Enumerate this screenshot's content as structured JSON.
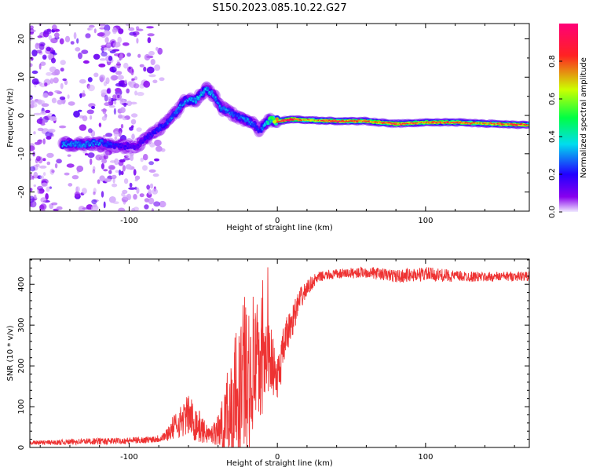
{
  "title": "S150.2023.085.10.22.G27",
  "chart_data": [
    {
      "type": "heatmap",
      "name": "spectrogram",
      "xlabel": "Height of straight line (km)",
      "ylabel": "Frequency (Hz)",
      "xlim": [
        -167,
        170
      ],
      "ylim": [
        -25,
        24
      ],
      "x_ticks": [
        -100,
        0,
        100
      ],
      "x_tick_labels": [
        "-100",
        "0",
        "100"
      ],
      "y_ticks": [
        -20,
        -10,
        0,
        10,
        20
      ],
      "y_tick_labels": [
        "-20",
        "-10",
        "0",
        "10",
        "20"
      ],
      "ridge": {
        "x": [
          -140,
          -130,
          -120,
          -110,
          -95,
          -85,
          -75,
          -68,
          -62,
          -55,
          -48,
          -42,
          -38,
          -33,
          -28,
          -22,
          -17,
          -12,
          -5,
          0,
          10,
          20,
          40,
          60,
          80,
          100,
          120,
          140,
          160,
          170
        ],
        "y": [
          -7.5,
          -7.5,
          -7,
          -8,
          -8,
          -5,
          -2,
          1,
          4,
          4,
          7,
          5,
          2,
          1,
          0,
          -1,
          -2,
          -4,
          -1,
          -1.5,
          -1,
          -1.2,
          -1.5,
          -1.5,
          -2.2,
          -1.8,
          -1.8,
          -2.1,
          -2.4,
          -2.5
        ],
        "amplitude": [
          0.3,
          0.3,
          0.3,
          0.2,
          0.15,
          0.2,
          0.25,
          0.3,
          0.3,
          0.35,
          0.35,
          0.3,
          0.3,
          0.3,
          0.25,
          0.3,
          0.3,
          0.2,
          0.5,
          0.8,
          0.95,
          0.7,
          0.85,
          0.8,
          0.85,
          0.8,
          0.85,
          0.75,
          0.85,
          0.8
        ]
      },
      "colorbar": {
        "label": "Normalized spectral amplitude",
        "range": [
          0,
          1
        ],
        "ticks": [
          0.0,
          0.2,
          0.4,
          0.6,
          0.8
        ],
        "tick_labels": [
          "0.0",
          "0.2",
          "0.4",
          "0.6",
          "0.8"
        ],
        "colors": [
          "#f0eaff",
          "#8800ee",
          "#2200ff",
          "#00ddee",
          "#00ff44",
          "#ccff00",
          "#ff2222",
          "#ff0077"
        ]
      }
    },
    {
      "type": "line",
      "name": "snr",
      "xlabel": "Height of straight line (km)",
      "ylabel": "SNR (10 * v/v)",
      "xlim": [
        -167,
        170
      ],
      "ylim": [
        0,
        462
      ],
      "x_ticks": [
        -100,
        0,
        100
      ],
      "x_tick_labels": [
        "-100",
        "0",
        "100"
      ],
      "y_ticks": [
        0,
        100,
        200,
        300,
        400
      ],
      "y_tick_labels": [
        "0",
        "100",
        "200",
        "300",
        "400"
      ],
      "color": "#ee3333",
      "series": [
        {
          "name": "SNR",
          "x": [
            -167,
            -150,
            -130,
            -115,
            -100,
            -90,
            -80,
            -75,
            -70,
            -65,
            -60,
            -55,
            -50,
            -45,
            -40,
            -35,
            -30,
            -25,
            -20,
            -15,
            -10,
            -5,
            0,
            5,
            10,
            15,
            20,
            25,
            30,
            40,
            60,
            80,
            100,
            120,
            140,
            160,
            170
          ],
          "y": [
            12,
            12,
            15,
            15,
            17,
            18,
            22,
            30,
            50,
            65,
            80,
            60,
            40,
            30,
            45,
            60,
            100,
            160,
            180,
            190,
            200,
            230,
            160,
            260,
            310,
            360,
            390,
            410,
            420,
            425,
            430,
            420,
            425,
            420,
            418,
            420,
            420
          ],
          "noise": [
            5,
            6,
            8,
            8,
            8,
            8,
            10,
            15,
            30,
            40,
            50,
            50,
            30,
            20,
            40,
            80,
            150,
            200,
            200,
            180,
            120,
            80,
            60,
            50,
            40,
            30,
            20,
            15,
            12,
            12,
            14,
            16,
            18,
            14,
            12,
            12,
            12
          ]
        }
      ]
    }
  ]
}
